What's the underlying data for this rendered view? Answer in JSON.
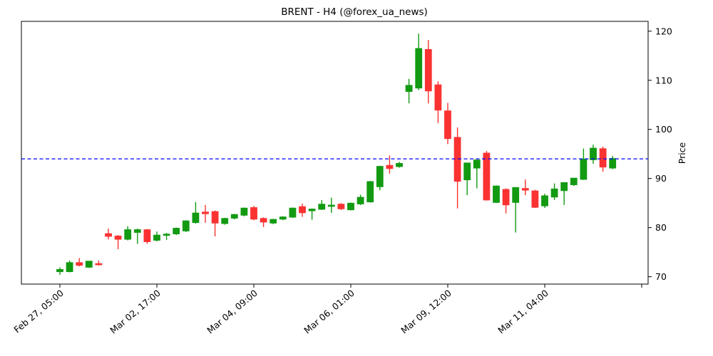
{
  "title": "BRENT - H4 (@forex_ua_news)",
  "chart_data": {
    "type": "candlestick",
    "symbol": "BRENT",
    "timeframe": "H4",
    "source_handle": "@forex_ua_news",
    "ylabel": "Price",
    "y_ticks": [
      70,
      80,
      90,
      100,
      110,
      120
    ],
    "y_range": [
      68.5,
      122.0
    ],
    "grid": false,
    "x_tick_indices": [
      0,
      10,
      20,
      30,
      40,
      50,
      60
    ],
    "x_tick_labels": [
      "Feb 27, 05:00",
      "Mar 02, 17:00",
      "Mar 04, 09:00",
      "Mar 06, 01:00",
      "Mar 09, 12:00",
      "Mar 11, 04:00",
      ""
    ],
    "hline": {
      "value": 94.0,
      "color": "#0000ff",
      "style": "dashed"
    },
    "colors": {
      "up": "#129a12",
      "down": "#fa3232",
      "axis": "#000000"
    },
    "candles": [
      {
        "o": 71.0,
        "h": 71.9,
        "l": 70.4,
        "c": 71.5
      },
      {
        "o": 71.0,
        "h": 73.3,
        "l": 70.9,
        "c": 72.9
      },
      {
        "o": 72.9,
        "h": 73.8,
        "l": 72.1,
        "c": 72.3
      },
      {
        "o": 71.9,
        "h": 73.2,
        "l": 71.8,
        "c": 73.2
      },
      {
        "o": 72.7,
        "h": 73.3,
        "l": 72.3,
        "c": 72.4
      },
      {
        "o": 78.8,
        "h": 79.8,
        "l": 77.6,
        "c": 78.2
      },
      {
        "o": 78.3,
        "h": 78.5,
        "l": 75.6,
        "c": 77.6
      },
      {
        "o": 77.6,
        "h": 80.3,
        "l": 77.4,
        "c": 79.6
      },
      {
        "o": 79.0,
        "h": 79.8,
        "l": 76.7,
        "c": 79.6
      },
      {
        "o": 79.6,
        "h": 79.7,
        "l": 76.7,
        "c": 77.1
      },
      {
        "o": 77.4,
        "h": 79.2,
        "l": 77.2,
        "c": 78.5
      },
      {
        "o": 78.4,
        "h": 78.9,
        "l": 77.5,
        "c": 78.7
      },
      {
        "o": 78.7,
        "h": 80.0,
        "l": 78.5,
        "c": 79.9
      },
      {
        "o": 79.3,
        "h": 81.5,
        "l": 79.1,
        "c": 81.4
      },
      {
        "o": 81.0,
        "h": 85.2,
        "l": 80.8,
        "c": 83.0
      },
      {
        "o": 83.2,
        "h": 84.6,
        "l": 81.0,
        "c": 82.8
      },
      {
        "o": 83.3,
        "h": 83.5,
        "l": 78.2,
        "c": 80.9
      },
      {
        "o": 80.8,
        "h": 82.0,
        "l": 80.6,
        "c": 81.9
      },
      {
        "o": 81.9,
        "h": 82.8,
        "l": 81.7,
        "c": 82.7
      },
      {
        "o": 82.5,
        "h": 84.1,
        "l": 82.3,
        "c": 84.0
      },
      {
        "o": 84.1,
        "h": 84.4,
        "l": 81.5,
        "c": 81.7
      },
      {
        "o": 81.9,
        "h": 82.1,
        "l": 80.1,
        "c": 81.1
      },
      {
        "o": 80.9,
        "h": 81.8,
        "l": 80.7,
        "c": 81.7
      },
      {
        "o": 81.7,
        "h": 82.3,
        "l": 81.5,
        "c": 82.2
      },
      {
        "o": 82.1,
        "h": 84.1,
        "l": 82.0,
        "c": 84.0
      },
      {
        "o": 84.3,
        "h": 84.9,
        "l": 82.2,
        "c": 83.0
      },
      {
        "o": 83.4,
        "h": 83.9,
        "l": 81.6,
        "c": 83.8
      },
      {
        "o": 83.7,
        "h": 85.6,
        "l": 83.6,
        "c": 84.8
      },
      {
        "o": 84.3,
        "h": 86.1,
        "l": 83.0,
        "c": 84.6
      },
      {
        "o": 84.8,
        "h": 85.0,
        "l": 83.6,
        "c": 83.8
      },
      {
        "o": 83.6,
        "h": 85.1,
        "l": 83.5,
        "c": 85.0
      },
      {
        "o": 84.8,
        "h": 86.7,
        "l": 84.6,
        "c": 86.2
      },
      {
        "o": 85.2,
        "h": 89.5,
        "l": 85.1,
        "c": 89.4
      },
      {
        "o": 88.3,
        "h": 92.6,
        "l": 87.6,
        "c": 92.5
      },
      {
        "o": 92.7,
        "h": 94.7,
        "l": 91.0,
        "c": 92.0
      },
      {
        "o": 92.4,
        "h": 93.4,
        "l": 92.2,
        "c": 93.1
      },
      {
        "o": 107.7,
        "h": 110.3,
        "l": 105.3,
        "c": 109.0
      },
      {
        "o": 108.4,
        "h": 119.5,
        "l": 108.0,
        "c": 116.5
      },
      {
        "o": 116.3,
        "h": 118.2,
        "l": 105.3,
        "c": 107.8
      },
      {
        "o": 109.1,
        "h": 109.8,
        "l": 101.3,
        "c": 103.9
      },
      {
        "o": 103.8,
        "h": 105.4,
        "l": 97.0,
        "c": 98.1
      },
      {
        "o": 98.4,
        "h": 100.4,
        "l": 83.9,
        "c": 89.4
      },
      {
        "o": 89.7,
        "h": 93.2,
        "l": 86.6,
        "c": 93.2
      },
      {
        "o": 92.1,
        "h": 93.8,
        "l": 88.0,
        "c": 93.8
      },
      {
        "o": 95.2,
        "h": 95.6,
        "l": 85.5,
        "c": 85.6
      },
      {
        "o": 85.1,
        "h": 88.6,
        "l": 85.0,
        "c": 88.5
      },
      {
        "o": 87.8,
        "h": 88.0,
        "l": 82.9,
        "c": 84.6
      },
      {
        "o": 85.1,
        "h": 88.2,
        "l": 79.0,
        "c": 88.2
      },
      {
        "o": 88.0,
        "h": 89.8,
        "l": 86.6,
        "c": 87.6
      },
      {
        "o": 87.5,
        "h": 87.7,
        "l": 84.0,
        "c": 84.1
      },
      {
        "o": 84.4,
        "h": 86.9,
        "l": 84.0,
        "c": 86.5
      },
      {
        "o": 86.2,
        "h": 89.0,
        "l": 85.6,
        "c": 87.9
      },
      {
        "o": 87.5,
        "h": 89.2,
        "l": 84.6,
        "c": 89.2
      },
      {
        "o": 88.7,
        "h": 90.1,
        "l": 88.5,
        "c": 90.1
      },
      {
        "o": 89.8,
        "h": 96.1,
        "l": 89.7,
        "c": 94.0
      },
      {
        "o": 93.8,
        "h": 96.9,
        "l": 93.0,
        "c": 96.2
      },
      {
        "o": 96.1,
        "h": 96.5,
        "l": 91.4,
        "c": 92.3
      },
      {
        "o": 92.1,
        "h": 94.6,
        "l": 91.9,
        "c": 94.1
      }
    ]
  }
}
